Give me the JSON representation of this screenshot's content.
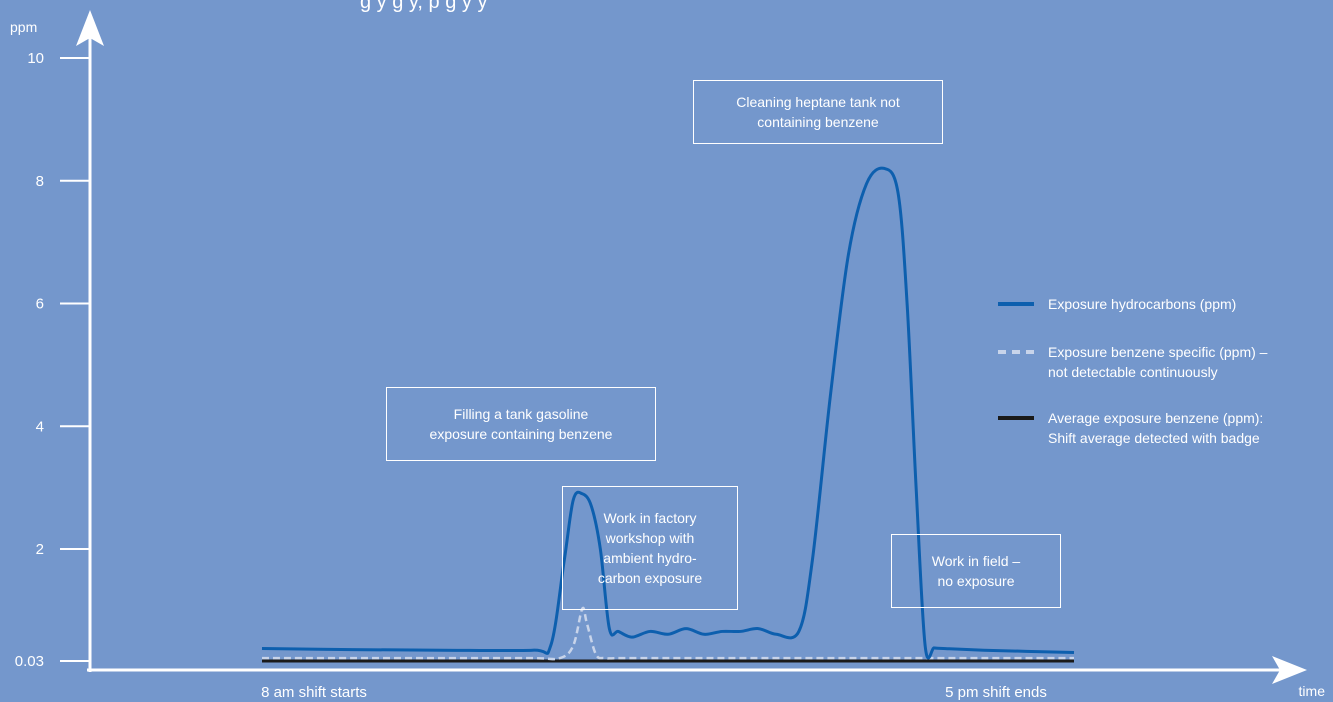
{
  "chart_data": {
    "type": "line",
    "title": "",
    "ylabel": "ppm",
    "xlabel": "time",
    "ylim": [
      0,
      10.4
    ],
    "y_ticks": [
      {
        "value": 0.03,
        "label": "0.03"
      },
      {
        "value": 2,
        "label": "2"
      },
      {
        "value": 4,
        "label": "4"
      },
      {
        "value": 6,
        "label": "6"
      },
      {
        "value": 8,
        "label": "8"
      },
      {
        "value": 10,
        "label": "10"
      }
    ],
    "x_labels": [
      {
        "value": 0,
        "label": "8 am shift starts"
      },
      {
        "value": 9,
        "label": "5 pm shift ends"
      }
    ],
    "xlim": [
      -1.35,
      10.6
    ],
    "series": [
      {
        "name": "Exposure hydrocarbons (ppm)",
        "color": "#0d5fae",
        "style": "solid",
        "x": [
          0,
          1,
          2,
          3,
          3.2,
          3.35,
          3.45,
          3.55,
          3.65,
          3.75,
          3.85,
          3.95,
          4.1,
          4.3,
          4.5,
          4.7,
          4.9,
          5.1,
          5.3,
          5.5,
          5.7,
          5.95,
          6.1,
          6.3,
          6.5,
          6.7,
          6.9,
          7.05,
          7.15,
          7.25,
          7.35,
          7.45,
          7.55,
          8,
          9
        ],
        "values": [
          0.25,
          0.23,
          0.22,
          0.22,
          0.3,
          1.8,
          2.8,
          2.9,
          2.7,
          2.0,
          0.6,
          0.55,
          0.45,
          0.55,
          0.5,
          0.6,
          0.5,
          0.55,
          0.55,
          0.6,
          0.5,
          0.55,
          1.8,
          4.5,
          6.8,
          7.95,
          8.2,
          7.8,
          6.0,
          3.0,
          0.3,
          0.26,
          0.25,
          0.22,
          0.18
        ]
      },
      {
        "name": "Exposure benzene specific (ppm) – not detectable continuously",
        "color": "#c8d4ea",
        "style": "dashed",
        "x": [
          0,
          1,
          2,
          3,
          3.3,
          3.45,
          3.55,
          3.6,
          3.7,
          3.8,
          4,
          5,
          6,
          7,
          8,
          9
        ],
        "values": [
          0.08,
          0.08,
          0.08,
          0.08,
          0.08,
          0.3,
          0.95,
          0.7,
          0.15,
          0.08,
          0.08,
          0.08,
          0.08,
          0.08,
          0.08,
          0.08
        ]
      },
      {
        "name": "Average exposure benzene (ppm): Shift average detected with badge",
        "color": "#1a1a1a",
        "style": "solid",
        "x": [
          0,
          9
        ],
        "values": [
          0.03,
          0.03
        ]
      }
    ],
    "annotations": [
      {
        "text": "Filling a tank gasoline\nexposure containing benzene"
      },
      {
        "text": "Work in factory\nworkshop with\nambient hydro-\ncarbon exposure"
      },
      {
        "text": "Cleaning heptane tank not\ncontaining benzene"
      },
      {
        "text": "Work in field –\nno exposure"
      }
    ],
    "legend_position": "right",
    "grid": false
  },
  "partial_title": "g            y    g            y,        p         g              y             y"
}
